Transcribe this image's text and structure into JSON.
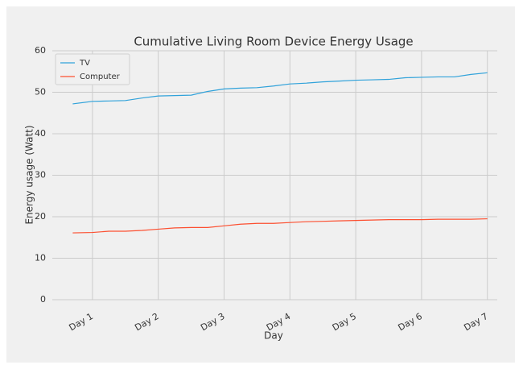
{
  "chart_data": {
    "type": "line",
    "title": "Cumulative Living Room Device Energy Usage",
    "xlabel": "Day",
    "ylabel": "Energy usage (Watt)",
    "x": [
      0.7,
      1.0,
      1.25,
      1.5,
      1.75,
      2.0,
      2.25,
      2.5,
      2.75,
      3.0,
      3.25,
      3.5,
      3.75,
      4.0,
      4.25,
      4.5,
      4.75,
      5.0,
      5.25,
      5.5,
      5.75,
      6.0,
      6.25,
      6.5,
      6.75,
      7.0
    ],
    "series": [
      {
        "name": "TV",
        "color": "#30a2da",
        "values": [
          47.2,
          47.8,
          47.9,
          48.0,
          48.6,
          49.1,
          49.2,
          49.3,
          50.2,
          50.8,
          51.0,
          51.1,
          51.5,
          52.0,
          52.2,
          52.5,
          52.7,
          52.9,
          53.0,
          53.1,
          53.5,
          53.6,
          53.7,
          53.7,
          54.3,
          54.7
        ]
      },
      {
        "name": "Computer",
        "color": "#fc4f30",
        "values": [
          16.1,
          16.2,
          16.5,
          16.5,
          16.7,
          17.0,
          17.3,
          17.4,
          17.4,
          17.8,
          18.2,
          18.4,
          18.4,
          18.6,
          18.8,
          18.9,
          19.0,
          19.1,
          19.2,
          19.3,
          19.3,
          19.3,
          19.4,
          19.4,
          19.4,
          19.5
        ]
      }
    ],
    "xlim": [
      0.39,
      7.15
    ],
    "xticks": [
      {
        "value": 1,
        "label": "Day 1"
      },
      {
        "value": 2,
        "label": "Day 2"
      },
      {
        "value": 3,
        "label": "Day 3"
      },
      {
        "value": 4,
        "label": "Day 4"
      },
      {
        "value": 5,
        "label": "Day 5"
      },
      {
        "value": 6,
        "label": "Day 6"
      },
      {
        "value": 7,
        "label": "Day 7"
      }
    ],
    "ylim": [
      0,
      60
    ],
    "yticks": [
      0,
      10,
      20,
      30,
      40,
      50,
      60
    ],
    "grid": true,
    "legend": "upper left"
  }
}
